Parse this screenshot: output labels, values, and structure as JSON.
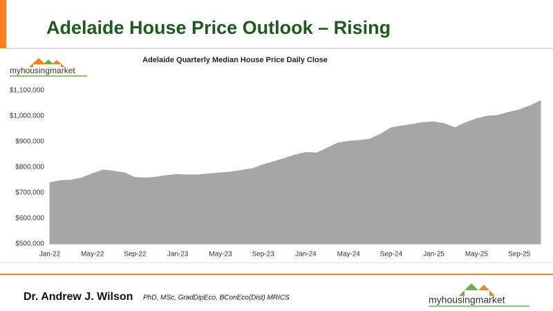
{
  "slide_title": "Adelaide House Price Outlook – Rising",
  "logo_text": "myhousingmarket",
  "footer": {
    "name": "Dr. Andrew J. Wilson",
    "credentials": "PhD, MSc, GradDipEco, BConEco(Dist) MRICS",
    "logo_text": "myhousingmarket"
  },
  "chart_data": {
    "type": "area",
    "title": "Adelaide Quarterly Median House Price Daily Close",
    "categories": [
      "Jan-22",
      null,
      null,
      null,
      "May-22",
      null,
      null,
      null,
      "Sep-22",
      null,
      null,
      null,
      "Jan-23",
      null,
      null,
      null,
      "May-23",
      null,
      null,
      null,
      "Sep-23",
      null,
      null,
      null,
      "Jan-24",
      null,
      null,
      null,
      "May-24",
      null,
      null,
      null,
      "Sep-24",
      null,
      null,
      null,
      "Jan-25",
      null,
      null,
      null,
      "May-25",
      null,
      null,
      null,
      "Sep-25",
      null,
      null
    ],
    "values": [
      740000,
      748000,
      750000,
      758000,
      775000,
      790000,
      785000,
      778000,
      760000,
      758000,
      762000,
      768000,
      772000,
      770000,
      771000,
      775000,
      778000,
      782000,
      788000,
      795000,
      810000,
      822000,
      835000,
      848000,
      858000,
      856000,
      875000,
      895000,
      902000,
      905000,
      910000,
      930000,
      955000,
      962000,
      968000,
      975000,
      978000,
      970000,
      955000,
      975000,
      990000,
      1000000,
      1003000,
      1015000,
      1025000,
      1040000,
      1060000
    ],
    "color": "#a6a6a6",
    "ylim": [
      500000,
      1100000
    ],
    "yticks": [
      {
        "value": 500000,
        "label": "$500,000"
      },
      {
        "value": 600000,
        "label": "$600,000"
      },
      {
        "value": 700000,
        "label": "$700,000"
      },
      {
        "value": 800000,
        "label": "$800,000"
      },
      {
        "value": 900000,
        "label": "$900,000"
      },
      {
        "value": 1000000,
        "label": "$1,000,000"
      },
      {
        "value": 1100000,
        "label": "$1,100,000"
      }
    ],
    "grid": false
  }
}
